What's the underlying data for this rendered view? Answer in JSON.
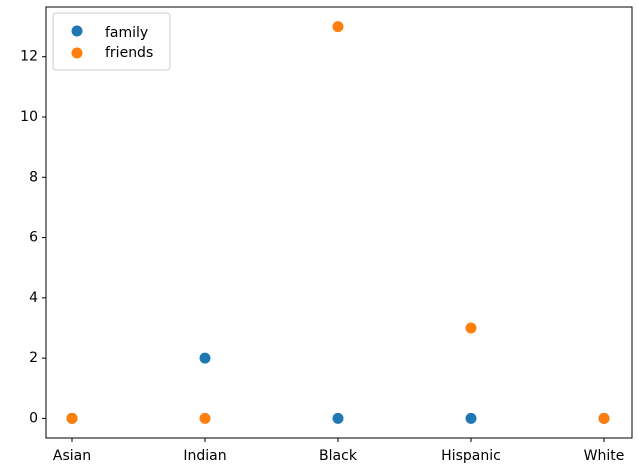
{
  "chart_data": {
    "type": "scatter",
    "categories": [
      "Asian",
      "Indian",
      "Black",
      "Hispanic",
      "White"
    ],
    "series": [
      {
        "name": "family",
        "values": [
          0,
          2,
          0,
          0,
          0
        ],
        "color": "#1f77b4"
      },
      {
        "name": "friends",
        "values": [
          0,
          0,
          13,
          3,
          0
        ],
        "color": "#ff7f0e"
      }
    ],
    "yticks": [
      0,
      2,
      4,
      6,
      8,
      10,
      12
    ],
    "ylim": [
      -0.65,
      13.65
    ],
    "title": "",
    "xlabel": "",
    "ylabel": "",
    "grid": false,
    "legend_position": "top-left"
  }
}
